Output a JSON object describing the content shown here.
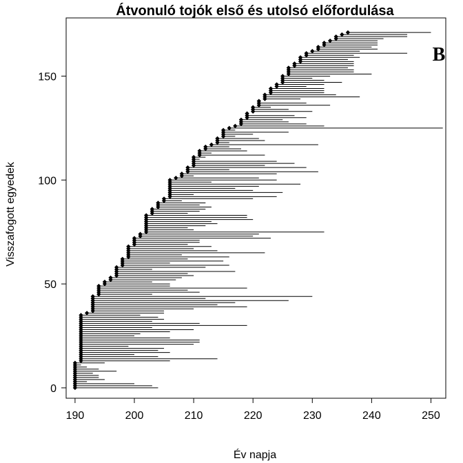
{
  "chart_data": {
    "type": "scatter",
    "title": "Átvonuló tojók első és utolsó előfordulása",
    "xlabel": "Év napja",
    "ylabel": "Visszafogott egyedek",
    "panel_label": "B",
    "xlim": [
      188.5,
      252.5
    ],
    "ylim": [
      -5,
      178
    ],
    "x_ticks": [
      190,
      200,
      210,
      220,
      230,
      240,
      250
    ],
    "y_ticks": [
      0,
      50,
      100,
      150
    ],
    "grid": false,
    "legend": "none",
    "marker": "diamond",
    "color": "#000000",
    "first_day": [
      190,
      190,
      190,
      190,
      190,
      190,
      190,
      190,
      190,
      190,
      190,
      190,
      190,
      191,
      191,
      191,
      191,
      191,
      191,
      191,
      191,
      191,
      191,
      191,
      191,
      191,
      191,
      191,
      191,
      191,
      191,
      191,
      191,
      191,
      191,
      191,
      192,
      193,
      193,
      193,
      193,
      193,
      193,
      193,
      193,
      194,
      194,
      194,
      194,
      194,
      195,
      195,
      196,
      196,
      197,
      197,
      197,
      197,
      197,
      198,
      198,
      198,
      198,
      199,
      199,
      199,
      199,
      199,
      199,
      200,
      200,
      200,
      200,
      201,
      201,
      202,
      202,
      202,
      202,
      202,
      202,
      202,
      202,
      202,
      203,
      203,
      203,
      204,
      204,
      204,
      205,
      205,
      206,
      206,
      206,
      206,
      206,
      206,
      206,
      206,
      206,
      207,
      208,
      208,
      209,
      209,
      209,
      210,
      210,
      210,
      210,
      210,
      211,
      211,
      211,
      212,
      212,
      213,
      214,
      214,
      214,
      215,
      215,
      215,
      215,
      216,
      217,
      218,
      218,
      218,
      219,
      219,
      219,
      220,
      220,
      220,
      221,
      221,
      221,
      222,
      222,
      222,
      223,
      223,
      223,
      224,
      224,
      225,
      225,
      225,
      225,
      226,
      226,
      226,
      226,
      227,
      227,
      228,
      228,
      228,
      229,
      229,
      230,
      231,
      231,
      232,
      232,
      233,
      234,
      234,
      235,
      236
    ],
    "last_day": [
      204,
      203,
      200,
      192,
      195,
      194,
      194,
      193,
      197,
      194,
      192,
      191,
      195,
      206,
      214,
      204,
      200,
      206,
      204,
      205,
      199,
      210,
      211,
      211,
      206,
      200,
      201,
      206,
      210,
      203,
      219,
      211,
      203,
      205,
      204,
      201,
      205,
      205,
      210,
      219,
      214,
      217,
      226,
      212,
      230,
      203,
      211,
      209,
      219,
      206,
      206,
      203,
      207,
      208,
      210,
      209,
      217,
      203,
      212,
      216,
      206,
      215,
      209,
      216,
      208,
      222,
      214,
      210,
      213,
      209,
      211,
      211,
      223,
      220,
      221,
      232,
      210,
      209,
      212,
      214,
      213,
      220,
      219,
      219,
      209,
      211,
      212,
      213,
      211,
      212,
      208,
      220,
      224,
      210,
      225,
      220,
      217,
      221,
      228,
      213,
      224,
      221,
      210,
      224,
      231,
      216,
      229,
      222,
      227,
      224,
      211,
      212,
      222,
      213,
      219,
      218,
      216,
      231,
      216,
      222,
      221,
      217,
      220,
      226,
      217,
      252,
      232,
      229,
      226,
      225,
      229,
      227,
      219,
      230,
      226,
      223,
      233,
      229,
      221,
      228,
      238,
      234,
      232,
      232,
      232,
      229,
      232,
      235,
      232,
      230,
      233,
      240,
      237,
      237,
      236,
      237,
      237,
      237,
      236,
      238,
      237,
      246,
      238,
      241,
      240,
      241,
      241,
      241,
      242,
      246,
      246,
      250
    ]
  }
}
